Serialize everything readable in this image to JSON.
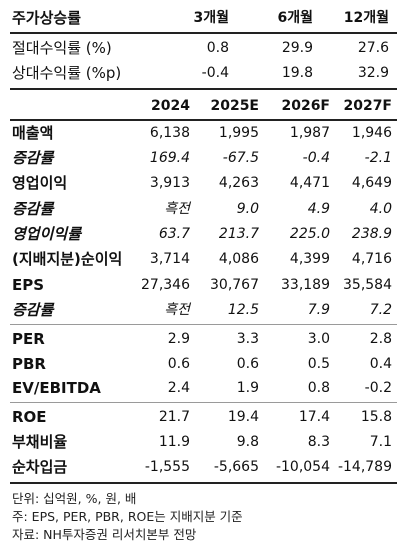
{
  "price_section": {
    "header": {
      "label": "주가상승률",
      "cols": [
        "3개월",
        "6개월",
        "12개월"
      ]
    },
    "rows": [
      {
        "label": "절대수익률 (%)",
        "values": [
          "0.8",
          "29.9",
          "27.6"
        ]
      },
      {
        "label": "상대수익률 (%p)",
        "values": [
          "-0.4",
          "19.8",
          "32.9"
        ]
      }
    ]
  },
  "estimates_section": {
    "header": {
      "cols": [
        "2024",
        "2025E",
        "2026F",
        "2027F"
      ]
    },
    "rows": [
      {
        "label": "매출액",
        "values": [
          "6,138",
          "1,995",
          "1,987",
          "1,946"
        ]
      },
      {
        "label": "증감률",
        "values": [
          "169.4",
          "-67.5",
          "-0.4",
          "-2.1"
        ]
      },
      {
        "label": "영업이익",
        "values": [
          "3,913",
          "4,263",
          "4,471",
          "4,649"
        ]
      },
      {
        "label": "증감률",
        "values": [
          "흑전",
          "9.0",
          "4.9",
          "4.0"
        ]
      },
      {
        "label": "영업이익률",
        "values": [
          "63.7",
          "213.7",
          "225.0",
          "238.9"
        ]
      },
      {
        "label": "(지배지분)순이익",
        "values": [
          "3,714",
          "4,086",
          "4,399",
          "4,716"
        ]
      },
      {
        "label": "EPS",
        "values": [
          "27,346",
          "30,767",
          "33,189",
          "35,584"
        ]
      },
      {
        "label": "증감률",
        "values": [
          "흑전",
          "12.5",
          "7.9",
          "7.2"
        ]
      },
      {
        "label": "PER",
        "values": [
          "2.9",
          "3.3",
          "3.0",
          "2.8"
        ]
      },
      {
        "label": "PBR",
        "values": [
          "0.6",
          "0.6",
          "0.5",
          "0.4"
        ]
      },
      {
        "label": "EV/EBITDA",
        "values": [
          "2.4",
          "1.9",
          "0.8",
          "-0.2"
        ]
      },
      {
        "label": "ROE",
        "values": [
          "21.7",
          "19.4",
          "17.4",
          "15.8"
        ]
      },
      {
        "label": "부채비율",
        "values": [
          "11.9",
          "9.8",
          "8.3",
          "7.1"
        ]
      },
      {
        "label": "순차입금",
        "values": [
          "-1,555",
          "-5,665",
          "-10,054",
          "-14,789"
        ]
      }
    ]
  },
  "notes": [
    "단위: 십억원, %, 원, 배",
    "주: EPS, PER, PBR, ROE는 지배지분 기준",
    "자료: NH투자증권 리서치본부 전망"
  ]
}
